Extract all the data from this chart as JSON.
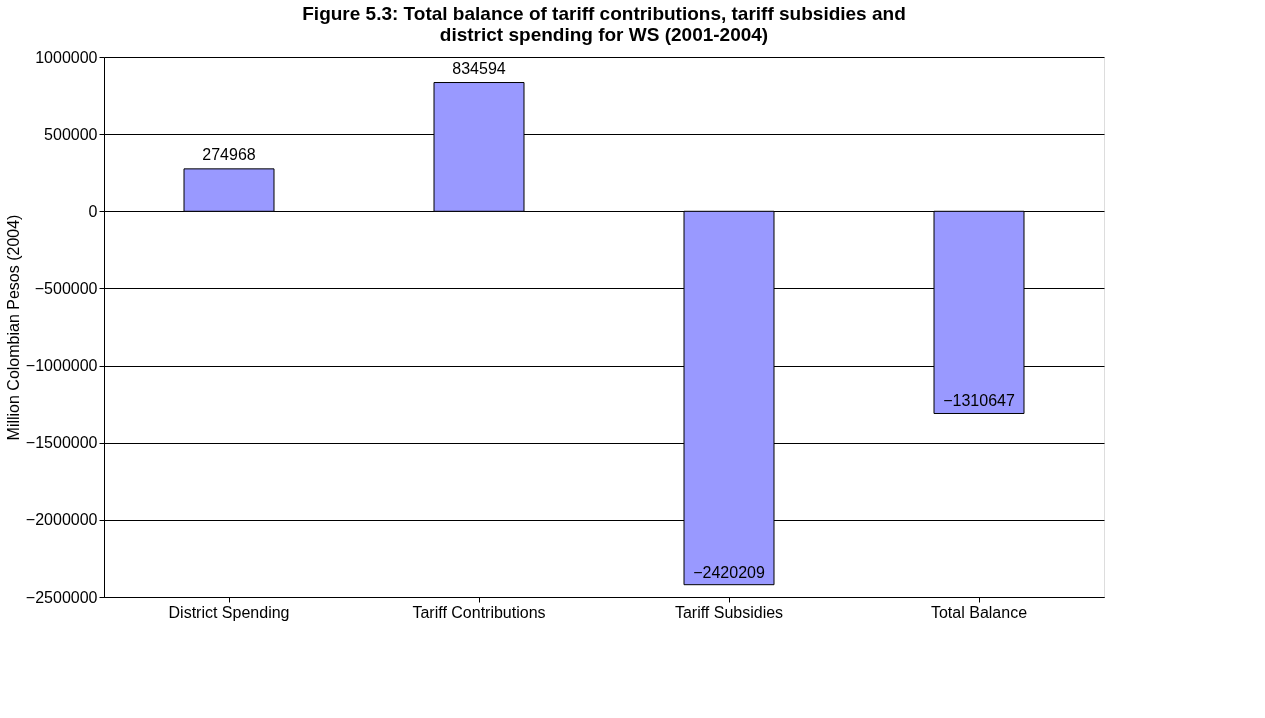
{
  "chart_data": {
    "type": "bar",
    "title": "Figure 5.3: Total balance of tariff contributions, tariff subsidies and district spending for WS (2001-2004)",
    "ylabel": "Million Colombian Pesos (2004)",
    "categories": [
      "District Spending",
      "Tariff Contributions",
      "Tariff Subsidies",
      "Total Balance"
    ],
    "values": [
      274968,
      834594,
      -2420209,
      -1310647
    ],
    "color": "#9999ff",
    "ylim": [
      -2500000,
      1000000
    ],
    "yticks": [
      -2500000,
      -2000000,
      -1500000,
      -1000000,
      -500000,
      0,
      500000,
      1000000
    ],
    "grid": "y",
    "data_labels": true
  }
}
